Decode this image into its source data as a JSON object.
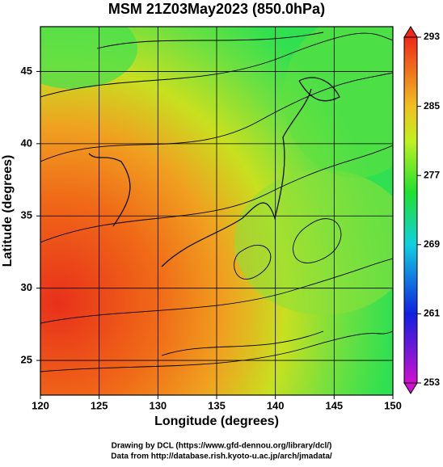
{
  "chart_data": {
    "type": "map",
    "title": "MSM 21Z03May2023 (850.0hPa)",
    "x_label": "Longitude (degrees)",
    "y_label": "Latitude  (degrees)",
    "xlim": [
      120,
      150
    ],
    "xticks": [
      120,
      125,
      130,
      135,
      140,
      145,
      150
    ],
    "ylim": [
      22.6,
      48.1
    ],
    "yticks": [
      25,
      30,
      35,
      40,
      45
    ],
    "grid": true,
    "colorbar": {
      "lim": [
        253,
        293
      ],
      "ticks": [
        253,
        261,
        269,
        277,
        285,
        293
      ]
    },
    "credits": [
      "Drawing by DCL (https://www.gfd-dennou.org/library/dcl/)",
      "Data from http://database.rish.kyoto-u.ac.jp/arch/jmadata/"
    ]
  }
}
